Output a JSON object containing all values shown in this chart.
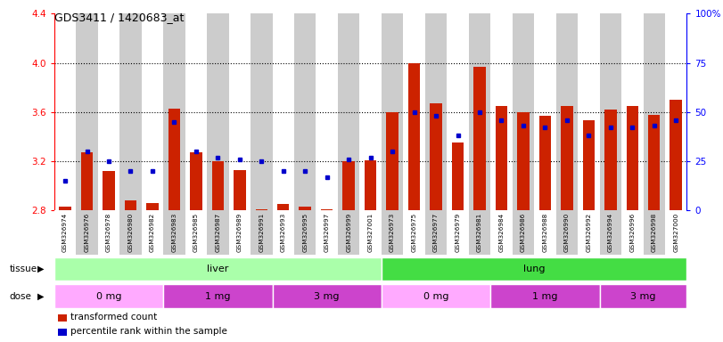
{
  "title": "GDS3411 / 1420683_at",
  "samples": [
    "GSM326974",
    "GSM326976",
    "GSM326978",
    "GSM326980",
    "GSM326982",
    "GSM326983",
    "GSM326985",
    "GSM326987",
    "GSM326989",
    "GSM326991",
    "GSM326993",
    "GSM326995",
    "GSM326997",
    "GSM326999",
    "GSM327001",
    "GSM326973",
    "GSM326975",
    "GSM326977",
    "GSM326979",
    "GSM326981",
    "GSM326984",
    "GSM326986",
    "GSM326988",
    "GSM326990",
    "GSM326992",
    "GSM326994",
    "GSM326996",
    "GSM326998",
    "GSM327000"
  ],
  "red_values": [
    2.83,
    3.27,
    3.12,
    2.88,
    2.86,
    3.63,
    3.27,
    3.2,
    3.13,
    2.81,
    2.85,
    2.83,
    2.81,
    3.2,
    3.21,
    3.6,
    4.0,
    3.67,
    3.35,
    3.97,
    3.65,
    3.6,
    3.57,
    3.65,
    3.53,
    3.62,
    3.65,
    3.58,
    3.7
  ],
  "blue_percentiles": [
    15,
    30,
    25,
    20,
    20,
    45,
    30,
    27,
    26,
    25,
    20,
    20,
    17,
    26,
    27,
    30,
    50,
    48,
    38,
    50,
    46,
    43,
    42,
    46,
    38,
    42,
    42,
    43,
    46
  ],
  "tissue_groups": [
    {
      "label": "liver",
      "start": 0,
      "end": 14,
      "color": "#aaffaa"
    },
    {
      "label": "lung",
      "start": 15,
      "end": 28,
      "color": "#44dd44"
    }
  ],
  "dose_groups": [
    {
      "label": "0 mg",
      "start": 0,
      "end": 4,
      "color": "#ffaaff"
    },
    {
      "label": "1 mg",
      "start": 5,
      "end": 9,
      "color": "#cc44cc"
    },
    {
      "label": "3 mg",
      "start": 10,
      "end": 14,
      "color": "#cc44cc"
    },
    {
      "label": "0 mg",
      "start": 15,
      "end": 19,
      "color": "#ffaaff"
    },
    {
      "label": "1 mg",
      "start": 20,
      "end": 24,
      "color": "#cc44cc"
    },
    {
      "label": "3 mg",
      "start": 25,
      "end": 28,
      "color": "#cc44cc"
    }
  ],
  "ylim_left": [
    2.8,
    4.4
  ],
  "ylim_right": [
    0,
    100
  ],
  "yticks_left": [
    2.8,
    3.2,
    3.6,
    4.0,
    4.4
  ],
  "yticks_right": [
    0,
    25,
    50,
    75,
    100
  ],
  "gridlines": [
    3.2,
    3.6,
    4.0
  ],
  "bar_color": "#cc2200",
  "dot_color": "#0000cc",
  "alt_bg_even": "#ffffff",
  "alt_bg_odd": "#cccccc"
}
